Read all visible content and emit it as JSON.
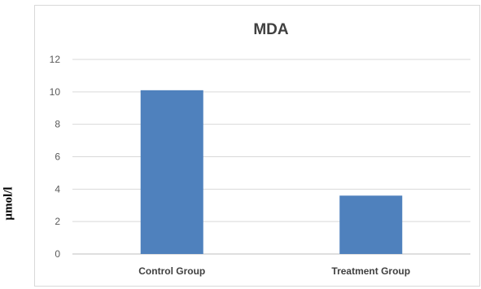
{
  "chart_data": {
    "type": "bar",
    "title": "MDA",
    "ylabel": "µmol/l",
    "xlabel": "",
    "categories": [
      "Control Group",
      "Treatment Group"
    ],
    "values": [
      10.1,
      3.6
    ],
    "ylim": [
      0,
      12
    ],
    "yticks": [
      0,
      2,
      4,
      6,
      8,
      10,
      12
    ],
    "grid": true,
    "legend": "none",
    "colors": {
      "bar": "#4f81bd",
      "grid": "#d9d9d9",
      "axis": "#bfbfbf"
    }
  }
}
